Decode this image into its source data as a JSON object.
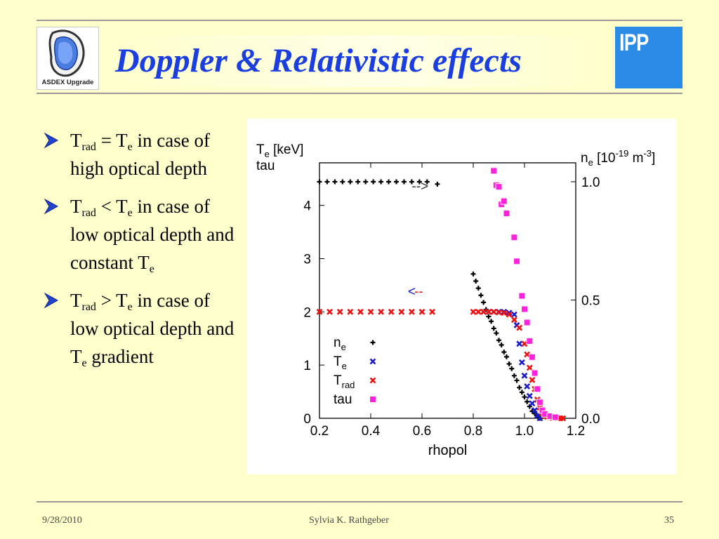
{
  "slide": {
    "title": "Doppler & Relativistic effects",
    "logo_left_text": "ASDEX Upgrade",
    "logo_right_text": "IPP"
  },
  "bullets": [
    {
      "t1": "T",
      "s1": "rad",
      "op": " = T",
      "s2": "e",
      "rest": " in case of  high optical depth",
      "tail": "",
      "s3": ""
    },
    {
      "t1": "T",
      "s1": "rad",
      "op": " < T",
      "s2": "e",
      "rest": " in case of  low optical depth and constant T",
      "tail": "",
      "s3": "e"
    },
    {
      "t1": "T",
      "s1": "rad",
      "op": " > T",
      "s2": "e",
      "rest": " in case of  low optical depth and T",
      "tail": " gradient",
      "s3": "e"
    }
  ],
  "footer": {
    "date": "9/28/2010",
    "author": "Sylvia K. Rathgeber",
    "page": "35"
  },
  "colors": {
    "background": "#ffffcc",
    "title": "#1a3ee0",
    "ne": "#000000",
    "Te": "#1a1acc",
    "Trad": "#ee1111",
    "tau": "#ff22dd"
  },
  "chart_data": {
    "type": "scatter",
    "xlabel": "rhopol",
    "ylabel_left": {
      "main": "T",
      "sub": "e",
      "unit": " [keV]",
      "line2": "tau"
    },
    "ylabel_right": {
      "main": "n",
      "sub": "e",
      "unit1": " [10",
      "sup": "-19",
      "unit2": " m",
      "sup2": "-3",
      "unit3": "]"
    },
    "xlim": [
      0.2,
      1.2
    ],
    "ylim_left": [
      0,
      4.8
    ],
    "ylim_right": [
      0,
      1.08
    ],
    "x_ticks": [
      "0.2",
      "0.4",
      "0.6",
      "0.8",
      "1.0",
      "1.2"
    ],
    "y_ticks_left": [
      "0",
      "1",
      "2",
      "3",
      "4"
    ],
    "y_ticks_right": [
      "0.0",
      "0.5",
      "1.0"
    ],
    "grid": false,
    "annotations": [
      {
        "text": "-->",
        "x": 0.56,
        "y": 4.28,
        "color": "#333333"
      },
      {
        "text": "<",
        "x": 0.545,
        "y": 2.3,
        "color": "#1a1acc"
      },
      {
        "text": "--",
        "x": 0.57,
        "y": 2.3,
        "color": "#ee1111"
      }
    ],
    "legend": {
      "position": "bottom-left",
      "items": [
        {
          "name": "n",
          "sub": "e",
          "color": "#000000",
          "marker": "plus"
        },
        {
          "name": "T",
          "sub": "e",
          "color": "#1a1acc",
          "marker": "x"
        },
        {
          "name": "T",
          "sub": "rad",
          "color": "#ee1111",
          "marker": "x"
        },
        {
          "name": "tau",
          "sub": "",
          "color": "#ff22dd",
          "marker": "square"
        }
      ]
    },
    "series": [
      {
        "name": "n_e",
        "axis": "right",
        "marker": "plus",
        "color": "#000000",
        "x": [
          0.2,
          0.23,
          0.26,
          0.29,
          0.32,
          0.35,
          0.38,
          0.41,
          0.44,
          0.47,
          0.5,
          0.53,
          0.56,
          0.59,
          0.62,
          0.66,
          0.8,
          0.81,
          0.82,
          0.83,
          0.84,
          0.85,
          0.86,
          0.87,
          0.88,
          0.89,
          0.9,
          0.91,
          0.92,
          0.93,
          0.94,
          0.95,
          0.96,
          0.97,
          0.98,
          0.99,
          1.0,
          1.01,
          1.02,
          1.03,
          1.04,
          1.05,
          1.06
        ],
        "y": [
          1.0,
          1.0,
          1.0,
          1.0,
          1.0,
          1.0,
          1.0,
          1.0,
          1.0,
          1.0,
          1.0,
          1.0,
          1.0,
          1.0,
          1.0,
          0.99,
          0.61,
          0.58,
          0.55,
          0.52,
          0.49,
          0.46,
          0.43,
          0.41,
          0.38,
          0.36,
          0.33,
          0.31,
          0.28,
          0.26,
          0.23,
          0.21,
          0.18,
          0.16,
          0.13,
          0.11,
          0.09,
          0.07,
          0.05,
          0.03,
          0.02,
          0.01,
          0.0
        ]
      },
      {
        "name": "T_e",
        "axis": "left",
        "marker": "x",
        "color": "#1a1acc",
        "x": [
          0.84,
          0.86,
          0.88,
          0.9,
          0.92,
          0.94,
          0.96,
          0.97,
          0.98,
          0.99,
          1.0,
          1.01,
          1.02,
          1.03,
          1.04,
          1.05,
          1.06
        ],
        "y": [
          2.0,
          2.0,
          2.0,
          2.0,
          2.0,
          1.98,
          1.95,
          1.75,
          1.4,
          1.05,
          0.8,
          0.6,
          0.42,
          0.28,
          0.15,
          0.05,
          0.0
        ]
      },
      {
        "name": "T_rad",
        "axis": "left",
        "marker": "x",
        "color": "#ee1111",
        "x": [
          0.2,
          0.24,
          0.28,
          0.32,
          0.36,
          0.4,
          0.44,
          0.48,
          0.52,
          0.56,
          0.6,
          0.64,
          0.8,
          0.82,
          0.84,
          0.86,
          0.88,
          0.9,
          0.92,
          0.94,
          0.96,
          0.98,
          1.0,
          1.01,
          1.02,
          1.03,
          1.04,
          1.05,
          1.06,
          1.07,
          1.08,
          1.09,
          1.1,
          1.11,
          1.12,
          1.13,
          1.14,
          1.15
        ],
        "y": [
          2.0,
          2.0,
          2.0,
          2.0,
          2.0,
          2.0,
          2.0,
          2.0,
          2.0,
          2.0,
          2.0,
          2.0,
          2.0,
          2.0,
          2.0,
          2.0,
          2.0,
          1.99,
          1.98,
          1.95,
          1.85,
          1.7,
          1.4,
          1.2,
          0.95,
          0.72,
          0.55,
          0.35,
          0.2,
          0.1,
          0.05,
          0.03,
          0.02,
          0.01,
          0.01,
          0.0,
          0.0,
          0.0
        ]
      },
      {
        "name": "tau",
        "axis": "left",
        "marker": "square",
        "color": "#ff22dd",
        "x": [
          0.88,
          0.89,
          0.9,
          0.91,
          0.92,
          0.93,
          0.96,
          0.97,
          0.99,
          1.0,
          1.01,
          1.02,
          1.03,
          1.04,
          1.05,
          1.06,
          1.07,
          1.08,
          1.1,
          1.12
        ],
        "y": [
          4.65,
          4.38,
          4.35,
          4.02,
          4.08,
          3.85,
          3.4,
          2.95,
          2.3,
          2.05,
          1.8,
          1.45,
          1.15,
          0.85,
          0.55,
          0.3,
          0.15,
          0.08,
          0.04,
          0.02
        ]
      }
    ]
  }
}
